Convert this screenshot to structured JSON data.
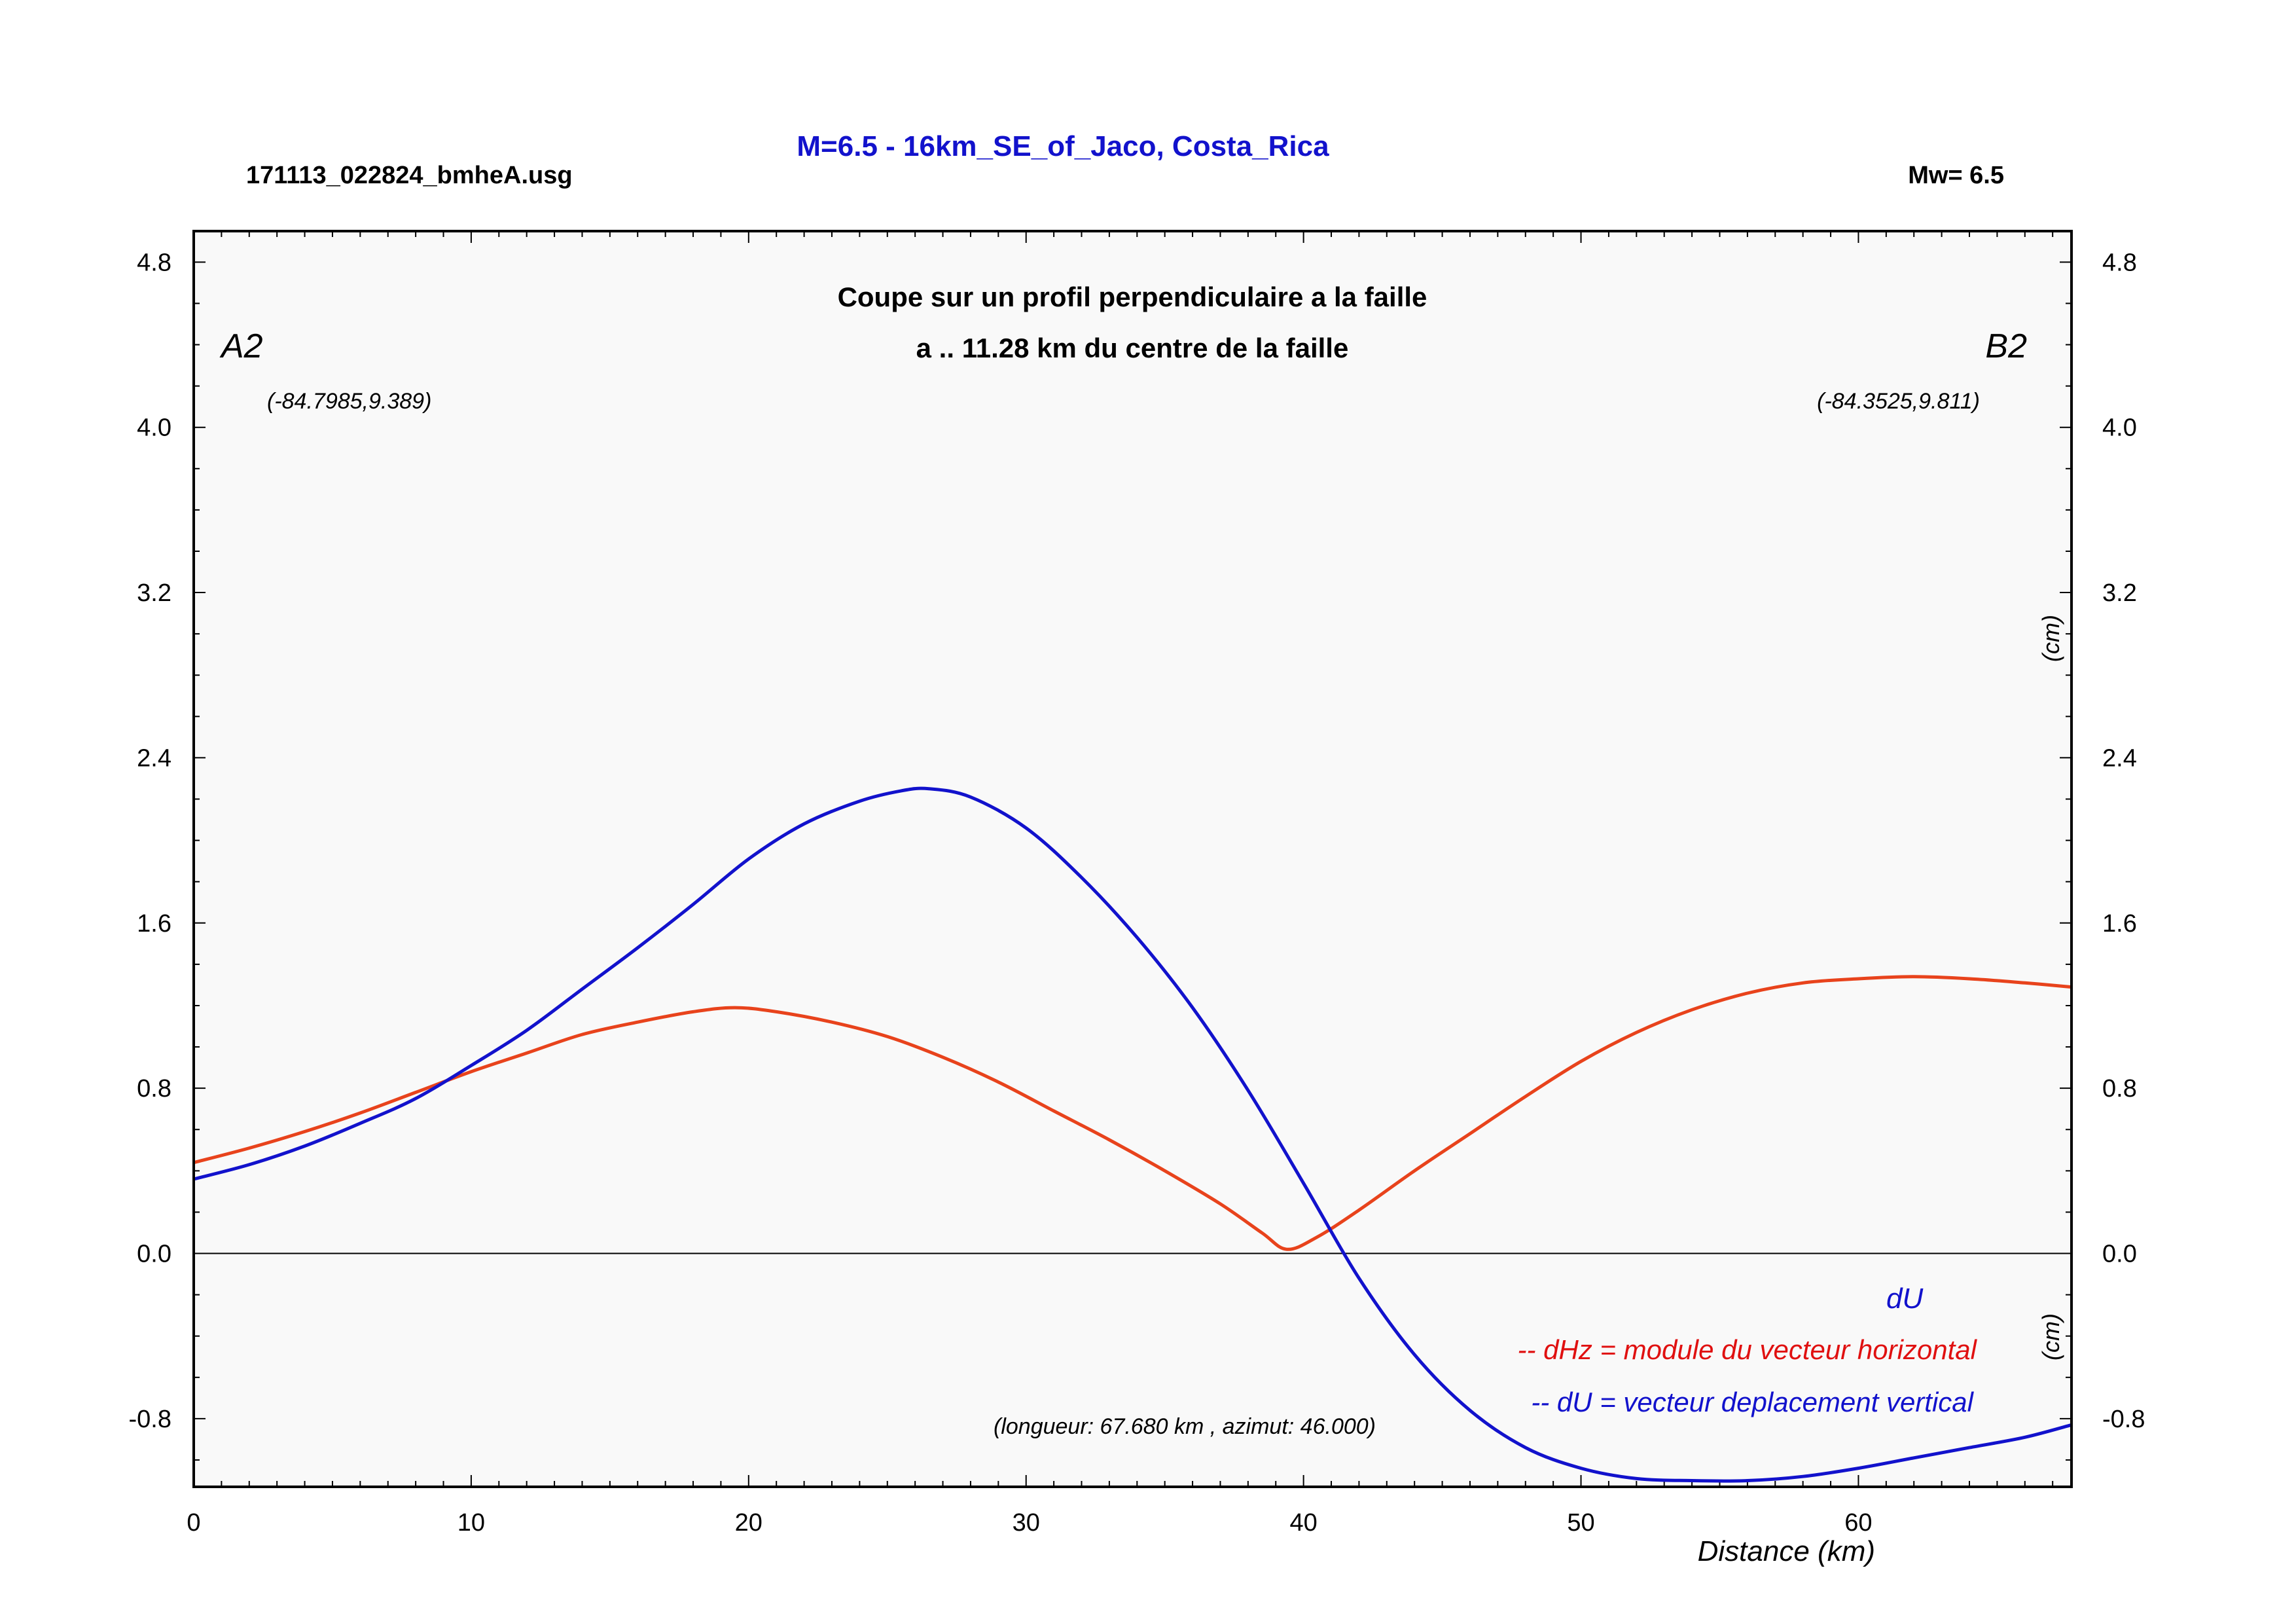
{
  "header": {
    "title": "M=6.5 - 16km_SE_of_Jaco, Costa_Rica",
    "file_label": "171113_022824_bmheA.usg",
    "mw_label": "Mw= 6.5"
  },
  "plot": {
    "title_line1": "Coupe sur un profil perpendiculaire a la faille",
    "title_line2": "a .. 11.28 km du centre de la faille",
    "point_a_label": "A2",
    "point_a_coords": "(-84.7985,9.389)",
    "point_b_label": "B2",
    "point_b_coords": "(-84.3525,9.811)",
    "length_note": "(longueur: 67.680 km , azimut: 46.000)",
    "unit_upper": "(cm)",
    "unit_lower": "(cm)",
    "du_tag": "dU",
    "legend_dhz": "-- dHz = module du vecteur horizontal",
    "legend_du": "-- dU =  vecteur deplacement vertical"
  },
  "colors": {
    "dhz": "#e8431c",
    "du": "#1212cc",
    "title": "#1212cc",
    "legend_dhz": "#e01010",
    "background": "#f9f9f9"
  },
  "chart_data": {
    "type": "line",
    "xlabel": "Distance (km)",
    "ylabel": "(cm)",
    "xlim": [
      0,
      67.68
    ],
    "ylim": [
      -1.13,
      4.95
    ],
    "x_ticks": [
      "0",
      "10",
      "20",
      "30",
      "40",
      "50",
      "60"
    ],
    "y_ticks": [
      "4.8",
      "4.0",
      "3.2",
      "2.4",
      "1.6",
      "0.8",
      "0.0",
      "-0.8"
    ],
    "grid": false,
    "series": [
      {
        "name": "dHz = module du vecteur horizontal",
        "color": "#e8431c",
        "x": [
          0,
          2,
          4,
          6,
          8,
          10,
          12,
          14,
          16,
          18,
          19.5,
          21,
          23,
          25,
          27,
          29,
          31,
          33,
          35,
          37,
          38.5,
          39.4,
          40.5,
          42,
          44,
          46,
          48,
          50,
          52,
          54,
          56,
          58,
          60,
          62,
          64,
          66,
          67.68
        ],
        "y": [
          0.44,
          0.51,
          0.59,
          0.68,
          0.78,
          0.88,
          0.97,
          1.06,
          1.12,
          1.17,
          1.19,
          1.17,
          1.12,
          1.05,
          0.95,
          0.83,
          0.69,
          0.55,
          0.4,
          0.24,
          0.1,
          0.02,
          0.08,
          0.21,
          0.4,
          0.58,
          0.76,
          0.93,
          1.07,
          1.18,
          1.26,
          1.31,
          1.33,
          1.34,
          1.33,
          1.31,
          1.29
        ]
      },
      {
        "name": "dU =  vecteur deplacement vertical",
        "color": "#1212cc",
        "x": [
          0,
          2,
          4,
          6,
          8,
          10,
          12,
          14,
          16,
          18,
          20,
          22,
          24,
          25.5,
          26.5,
          28,
          30,
          32,
          34,
          36,
          38,
          40,
          42,
          44,
          46,
          48,
          50,
          52,
          54,
          56,
          58,
          60,
          62,
          64,
          66,
          67.68
        ],
        "y": [
          0.36,
          0.43,
          0.52,
          0.63,
          0.75,
          0.91,
          1.08,
          1.28,
          1.48,
          1.69,
          1.91,
          2.08,
          2.19,
          2.24,
          2.25,
          2.21,
          2.06,
          1.82,
          1.53,
          1.19,
          0.79,
          0.34,
          -0.12,
          -0.49,
          -0.76,
          -0.94,
          -1.04,
          -1.09,
          -1.1,
          -1.1,
          -1.08,
          -1.04,
          -0.99,
          -0.94,
          -0.89,
          -0.83
        ]
      }
    ]
  }
}
